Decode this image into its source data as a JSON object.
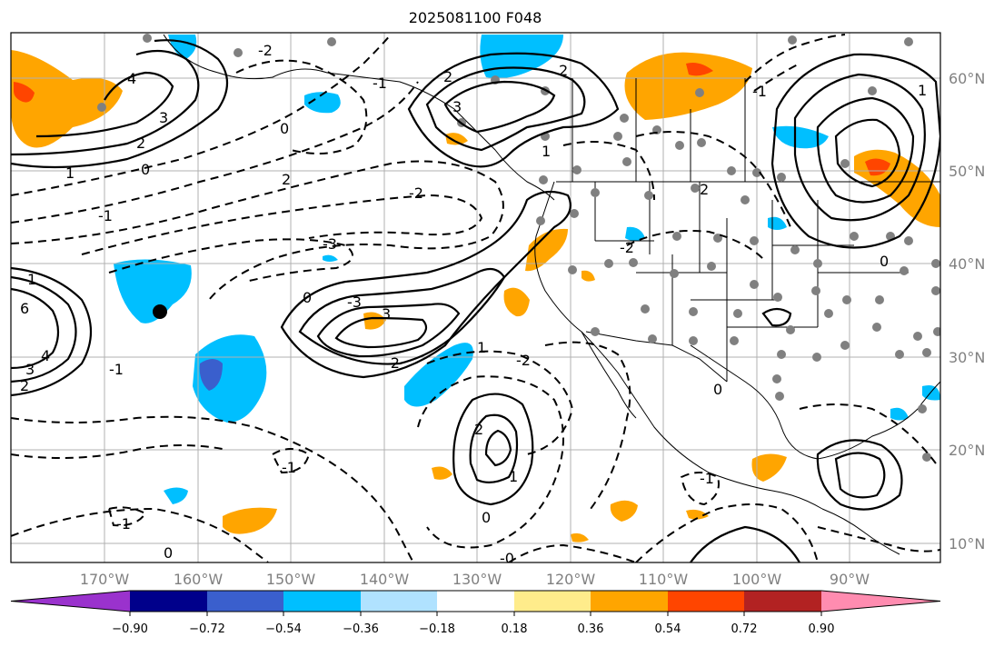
{
  "map": {
    "title": "2025081100 F048",
    "lat_labels": [
      "60°N",
      "50°N",
      "40°N",
      "30°N",
      "20°N",
      "10°N"
    ],
    "lon_labels": [
      "170°W",
      "160°W",
      "150°W",
      "140°W",
      "130°W",
      "120°W",
      "110°W",
      "100°W",
      "90°W"
    ],
    "contour_labels": [
      "4",
      "3",
      "2",
      "1",
      "0",
      "2",
      "-3",
      "-1",
      "-2",
      "3",
      "2",
      "-1",
      "-2",
      "0",
      "2",
      "1",
      "2",
      "-1",
      "1",
      "0",
      "6",
      "4",
      "3",
      "2",
      "1",
      "0",
      "-1",
      "3",
      "-1",
      "-2",
      "-1",
      "0",
      "-0",
      "1",
      "0",
      "1",
      "-1",
      "0",
      "-2",
      "-2",
      "2",
      "-3"
    ],
    "marker": "station-dot"
  },
  "colorbar": {
    "ticks": [
      "−0.90",
      "−0.72",
      "−0.54",
      "−0.36",
      "−0.18",
      "0.18",
      "0.36",
      "0.54",
      "0.72",
      "0.90"
    ],
    "colors": [
      "#9a32cd",
      "#00008b",
      "#3a5fcd",
      "#00bfff",
      "#b0e2ff",
      "#ffffff",
      "#ffec8b",
      "#ffa500",
      "#ff4500",
      "#b22222",
      "#ff8cb0"
    ]
  }
}
